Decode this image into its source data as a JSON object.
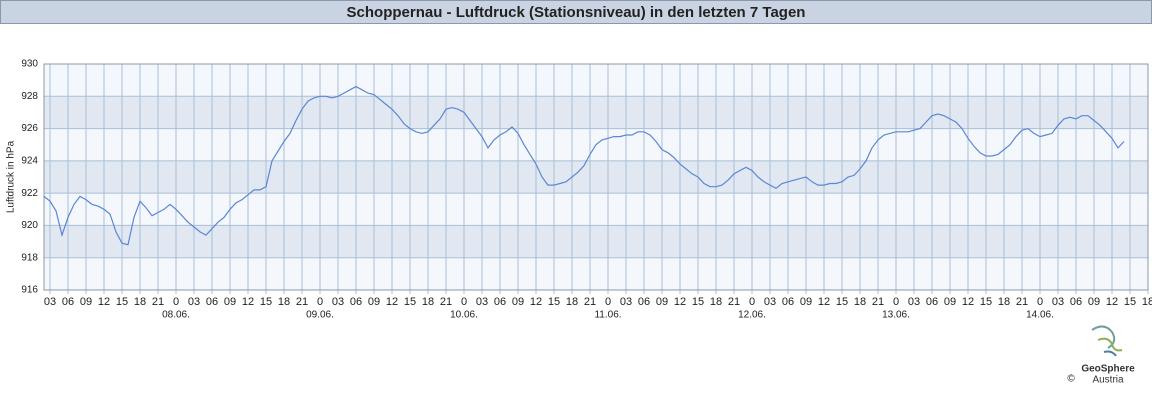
{
  "chart_data": {
    "type": "line",
    "title": "Schoppernau - Luftdruck (Stationsniveau) in den letzten 7 Tagen",
    "ylabel": "Luftdruck in hPa",
    "x": [
      2,
      3,
      4,
      5,
      6,
      7,
      8,
      9,
      10,
      11,
      12,
      13,
      14,
      15,
      16,
      17,
      18,
      19,
      20,
      21,
      22,
      23,
      24,
      25,
      26,
      27,
      28,
      29,
      30,
      31,
      32,
      33,
      34,
      35,
      36,
      37,
      38,
      39,
      40,
      41,
      42,
      43,
      44,
      45,
      46,
      47,
      48,
      49,
      50,
      51,
      52,
      53,
      54,
      55,
      56,
      57,
      58,
      59,
      60,
      61,
      62,
      63,
      64,
      65,
      66,
      67,
      68,
      69,
      70,
      71,
      72,
      73,
      74,
      75,
      76,
      77,
      78,
      79,
      80,
      81,
      82,
      83,
      84,
      85,
      86,
      87,
      88,
      89,
      90,
      91,
      92,
      93,
      94,
      95,
      96,
      97,
      98,
      99,
      100,
      101,
      102,
      103,
      104,
      105,
      106,
      107,
      108,
      109,
      110,
      111,
      112,
      113,
      114,
      115,
      116,
      117,
      118,
      119,
      120,
      121,
      122,
      123,
      124,
      125,
      126,
      127,
      128,
      129,
      130,
      131,
      132,
      133,
      134,
      135,
      136,
      137,
      138,
      139,
      140,
      141,
      142,
      143,
      144,
      145,
      146,
      147,
      148,
      149,
      150,
      151,
      152,
      153,
      154,
      155,
      156,
      157,
      158,
      159,
      160,
      161,
      162,
      163,
      164,
      165,
      166,
      167,
      168,
      169,
      170,
      171,
      172,
      173,
      174,
      175,
      176,
      177,
      178,
      179,
      180,
      181,
      182
    ],
    "series": [
      {
        "name": "Luftdruck",
        "color": "#5b86d6",
        "values": [
          921.8,
          921.5,
          920.9,
          919.4,
          920.5,
          921.3,
          921.8,
          921.6,
          921.3,
          921.2,
          921.0,
          920.7,
          919.6,
          918.9,
          918.8,
          920.5,
          921.5,
          921.1,
          920.6,
          920.8,
          921.0,
          921.3,
          921.0,
          920.6,
          920.2,
          919.9,
          919.6,
          919.4,
          919.8,
          920.2,
          920.5,
          921.0,
          921.4,
          921.6,
          921.9,
          922.2,
          922.2,
          922.4,
          924.0,
          924.6,
          925.2,
          925.7,
          926.5,
          927.2,
          927.7,
          927.9,
          928.0,
          928.0,
          927.9,
          928.0,
          928.2,
          928.4,
          928.6,
          928.4,
          928.2,
          928.1,
          927.8,
          927.5,
          927.2,
          926.8,
          926.3,
          926.0,
          925.8,
          925.7,
          925.8,
          926.2,
          926.6,
          927.2,
          927.3,
          927.2,
          927.0,
          926.5,
          926.0,
          925.5,
          924.8,
          925.3,
          925.6,
          925.8,
          926.1,
          925.7,
          925.0,
          924.4,
          923.8,
          923.0,
          922.5,
          922.5,
          922.6,
          922.7,
          923.0,
          923.3,
          923.7,
          924.4,
          925.0,
          925.3,
          925.4,
          925.5,
          925.5,
          925.6,
          925.6,
          925.8,
          925.8,
          925.6,
          925.2,
          924.7,
          924.5,
          924.2,
          923.8,
          923.5,
          923.2,
          923.0,
          922.6,
          922.4,
          922.4,
          922.5,
          922.8,
          923.2,
          923.4,
          923.6,
          923.4,
          923.0,
          922.7,
          922.5,
          922.3,
          922.6,
          922.7,
          922.8,
          922.9,
          923.0,
          922.7,
          922.5,
          922.5,
          922.6,
          922.6,
          922.7,
          923.0,
          923.1,
          923.5,
          924.0,
          924.8,
          925.3,
          925.6,
          925.7,
          925.8,
          925.8,
          925.8,
          925.9,
          926.0,
          926.4,
          926.8,
          926.9,
          926.8,
          926.6,
          926.4,
          926.0,
          925.4,
          924.9,
          924.5,
          924.3,
          924.3,
          924.4,
          924.7,
          925.0,
          925.5,
          925.9,
          926.0,
          925.7,
          925.5,
          925.6,
          925.7,
          926.2,
          926.6,
          926.7,
          926.6,
          926.8,
          926.8,
          926.5,
          926.2,
          925.8,
          925.4,
          924.8,
          925.2
        ]
      }
    ],
    "xlim": [
      2,
      186
    ],
    "ylim": [
      916,
      930
    ],
    "yticks": [
      916,
      918,
      920,
      922,
      924,
      926,
      928,
      930
    ],
    "xticks": [
      {
        "value": 3,
        "label": "03"
      },
      {
        "value": 6,
        "label": "06"
      },
      {
        "value": 9,
        "label": "09"
      },
      12,
      15,
      18,
      21,
      {
        "value": 24,
        "label": "0"
      },
      {
        "value": 27,
        "label": "03"
      },
      {
        "value": 30,
        "label": "06"
      },
      {
        "value": 33,
        "label": "09"
      },
      {
        "value": 36,
        "label": "12"
      },
      {
        "value": 39,
        "label": "15"
      },
      {
        "value": 42,
        "label": "18"
      },
      {
        "value": 45,
        "label": "21"
      },
      {
        "value": 48,
        "label": "0"
      },
      {
        "value": 51,
        "label": "03"
      },
      {
        "value": 54,
        "label": "06"
      },
      {
        "value": 57,
        "label": "09"
      },
      {
        "value": 60,
        "label": "12"
      },
      {
        "value": 63,
        "label": "15"
      },
      {
        "value": 66,
        "label": "18"
      },
      {
        "value": 69,
        "label": "21"
      },
      {
        "value": 72,
        "label": "0"
      },
      {
        "value": 75,
        "label": "03"
      },
      {
        "value": 78,
        "label": "06"
      },
      {
        "value": 81,
        "label": "09"
      },
      {
        "value": 84,
        "label": "12"
      },
      {
        "value": 87,
        "label": "15"
      },
      {
        "value": 90,
        "label": "18"
      },
      {
        "value": 93,
        "label": "21"
      },
      {
        "value": 96,
        "label": "0"
      },
      {
        "value": 99,
        "label": "03"
      },
      {
        "value": 102,
        "label": "06"
      },
      {
        "value": 105,
        "label": "09"
      },
      {
        "value": 108,
        "label": "12"
      },
      {
        "value": 111,
        "label": "15"
      },
      {
        "value": 114,
        "label": "18"
      },
      {
        "value": 117,
        "label": "21"
      },
      {
        "value": 120,
        "label": "0"
      },
      {
        "value": 123,
        "label": "03"
      },
      {
        "value": 126,
        "label": "06"
      },
      {
        "value": 129,
        "label": "09"
      },
      {
        "value": 132,
        "label": "12"
      },
      {
        "value": 135,
        "label": "15"
      },
      {
        "value": 138,
        "label": "18"
      },
      {
        "value": 141,
        "label": "21"
      },
      {
        "value": 144,
        "label": "0"
      },
      {
        "value": 147,
        "label": "03"
      },
      {
        "value": 150,
        "label": "06"
      },
      {
        "value": 153,
        "label": "09"
      },
      {
        "value": 156,
        "label": "12"
      },
      {
        "value": 159,
        "label": "15"
      },
      {
        "value": 162,
        "label": "18"
      },
      {
        "value": 165,
        "label": "21"
      },
      {
        "value": 168,
        "label": "0"
      },
      {
        "value": 171,
        "label": "03"
      },
      {
        "value": 174,
        "label": "06"
      },
      {
        "value": 177,
        "label": "09"
      },
      {
        "value": 180,
        "label": "12"
      },
      {
        "value": 183,
        "label": "15"
      },
      {
        "value": 186,
        "label": "18"
      }
    ],
    "xdates": [
      {
        "value": 24,
        "label": "08.06."
      },
      {
        "value": 48,
        "label": "09.06."
      },
      {
        "value": 72,
        "label": "10.06."
      },
      {
        "value": 96,
        "label": "11.06."
      },
      {
        "value": 120,
        "label": "12.06."
      },
      {
        "value": 144,
        "label": "13.06."
      },
      {
        "value": 168,
        "label": "14.06."
      }
    ],
    "grid": true
  },
  "footer": {
    "brand": "GeoSphere",
    "sub": "Austria",
    "copyright": "©"
  }
}
